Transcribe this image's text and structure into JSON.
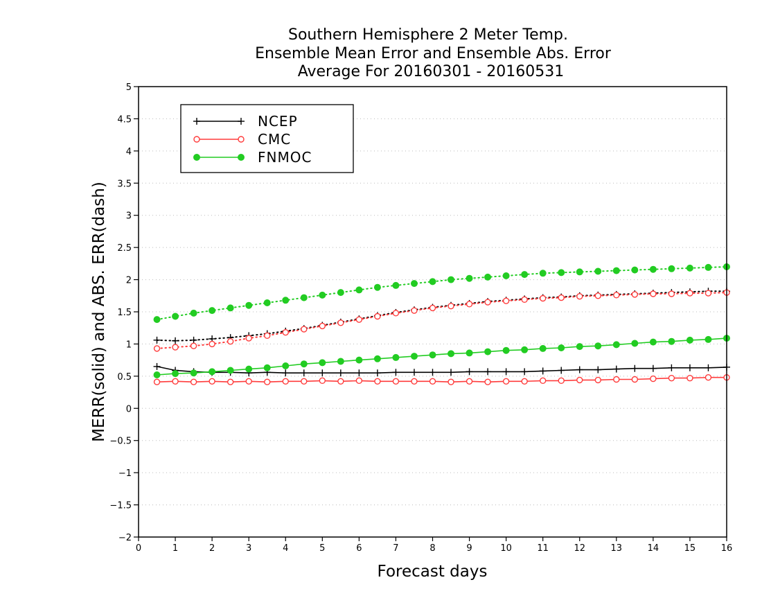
{
  "chart_data": {
    "type": "line",
    "title": [
      "Southern Hemisphere 2 Meter Temp.",
      "Ensemble Mean Error and Ensemble Abs. Error",
      "Average For 20160301 - 20160531"
    ],
    "xlabel": "Forecast days",
    "ylabel": "MERR(solid) and ABS. ERR(dash)",
    "xlim": [
      0,
      16
    ],
    "ylim": [
      -2,
      5
    ],
    "x_ticks": [
      0,
      1,
      2,
      3,
      4,
      5,
      6,
      7,
      8,
      9,
      10,
      11,
      12,
      13,
      14,
      15,
      16
    ],
    "y_ticks": [
      -2,
      -1.5,
      -1,
      -0.5,
      0,
      0.5,
      1,
      1.5,
      2,
      2.5,
      3,
      3.5,
      4,
      4.5,
      5
    ],
    "grid": "horizontal dotted",
    "legend_position": "top-left",
    "x": [
      0.5,
      1,
      1.5,
      2,
      2.5,
      3,
      3.5,
      4,
      4.5,
      5,
      5.5,
      6,
      6.5,
      7,
      7.5,
      8,
      8.5,
      9,
      9.5,
      10,
      10.5,
      11,
      11.5,
      12,
      12.5,
      13,
      13.5,
      14,
      14.5,
      15,
      15.5,
      16
    ],
    "series": [
      {
        "name": "NCEP",
        "color": "#000000",
        "marker": "plus",
        "merr": [
          0.65,
          0.59,
          0.57,
          0.56,
          0.56,
          0.55,
          0.56,
          0.55,
          0.55,
          0.55,
          0.55,
          0.55,
          0.55,
          0.56,
          0.56,
          0.56,
          0.56,
          0.57,
          0.57,
          0.57,
          0.57,
          0.58,
          0.59,
          0.6,
          0.6,
          0.61,
          0.62,
          0.62,
          0.63,
          0.63,
          0.63,
          0.64
        ],
        "abs_err": [
          1.06,
          1.05,
          1.06,
          1.08,
          1.1,
          1.13,
          1.16,
          1.2,
          1.24,
          1.29,
          1.34,
          1.39,
          1.44,
          1.49,
          1.53,
          1.57,
          1.6,
          1.63,
          1.66,
          1.68,
          1.7,
          1.72,
          1.73,
          1.75,
          1.76,
          1.77,
          1.78,
          1.79,
          1.8,
          1.81,
          1.82,
          1.82
        ]
      },
      {
        "name": "CMC",
        "color": "#ff3b3b",
        "marker": "open-circle",
        "merr": [
          0.41,
          0.42,
          0.41,
          0.42,
          0.41,
          0.42,
          0.41,
          0.42,
          0.42,
          0.43,
          0.42,
          0.43,
          0.42,
          0.42,
          0.42,
          0.42,
          0.41,
          0.42,
          0.41,
          0.42,
          0.42,
          0.43,
          0.43,
          0.44,
          0.44,
          0.45,
          0.45,
          0.46,
          0.47,
          0.47,
          0.48,
          0.48
        ],
        "abs_err": [
          0.93,
          0.95,
          0.97,
          1.0,
          1.04,
          1.09,
          1.13,
          1.18,
          1.23,
          1.28,
          1.33,
          1.38,
          1.43,
          1.48,
          1.52,
          1.56,
          1.59,
          1.62,
          1.65,
          1.67,
          1.69,
          1.71,
          1.72,
          1.74,
          1.75,
          1.76,
          1.77,
          1.78,
          1.78,
          1.79,
          1.79,
          1.8
        ]
      },
      {
        "name": "FNMOC",
        "color": "#22cc22",
        "marker": "filled-circle",
        "merr": [
          0.52,
          0.54,
          0.55,
          0.57,
          0.59,
          0.61,
          0.63,
          0.66,
          0.69,
          0.71,
          0.73,
          0.75,
          0.77,
          0.79,
          0.81,
          0.83,
          0.85,
          0.86,
          0.88,
          0.9,
          0.91,
          0.93,
          0.94,
          0.96,
          0.97,
          0.99,
          1.01,
          1.03,
          1.04,
          1.06,
          1.07,
          1.09
        ],
        "abs_err": [
          1.38,
          1.43,
          1.48,
          1.52,
          1.56,
          1.6,
          1.64,
          1.68,
          1.72,
          1.76,
          1.8,
          1.84,
          1.88,
          1.91,
          1.94,
          1.97,
          2.0,
          2.02,
          2.04,
          2.06,
          2.08,
          2.1,
          2.11,
          2.12,
          2.13,
          2.14,
          2.15,
          2.16,
          2.17,
          2.18,
          2.19,
          2.2
        ]
      }
    ]
  }
}
